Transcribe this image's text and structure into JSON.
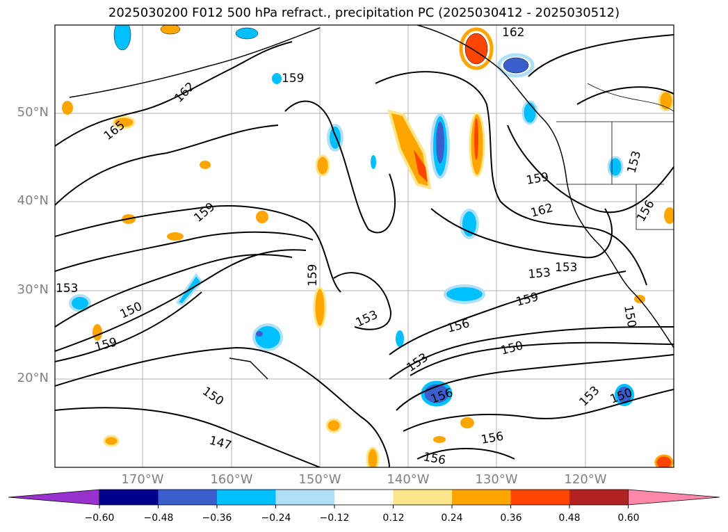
{
  "title": "2025030200 F012 500 hPa refract., precipitation PC (2025030412 - 2025030512)",
  "lat_labels": [
    "50°N",
    "40°N",
    "30°N",
    "20°N"
  ],
  "lon_labels": [
    "170°W",
    "160°W",
    "150°W",
    "140°W",
    "130°W",
    "120°W"
  ],
  "contour_labels": [
    "162",
    "159",
    "165",
    "162",
    "159",
    "159",
    "153",
    "150",
    "159",
    "153",
    "156",
    "153",
    "150",
    "153",
    "159",
    "153",
    "156",
    "150",
    "150",
    "147",
    "156",
    "156",
    "153",
    "150",
    "159",
    "162",
    "153",
    "156"
  ],
  "colorbar": {
    "ticks": [
      "−0.60",
      "−0.48",
      "−0.36",
      "−0.24",
      "−0.12",
      "0.12",
      "0.24",
      "0.36",
      "0.48",
      "0.60"
    ],
    "colors": [
      "#9932cc",
      "#00008b",
      "#3a5fcd",
      "#00bfff",
      "#b0e0f8",
      "#ffffff",
      "#fde68a",
      "#ffa500",
      "#ff4500",
      "#b22222",
      "#ff88aa"
    ]
  },
  "legend_colors": {
    "neg": [
      "#3a5fcd",
      "#00bfff",
      "#b0e0f8"
    ],
    "pos": [
      "#fde68a",
      "#ffa500",
      "#ff4500"
    ]
  }
}
